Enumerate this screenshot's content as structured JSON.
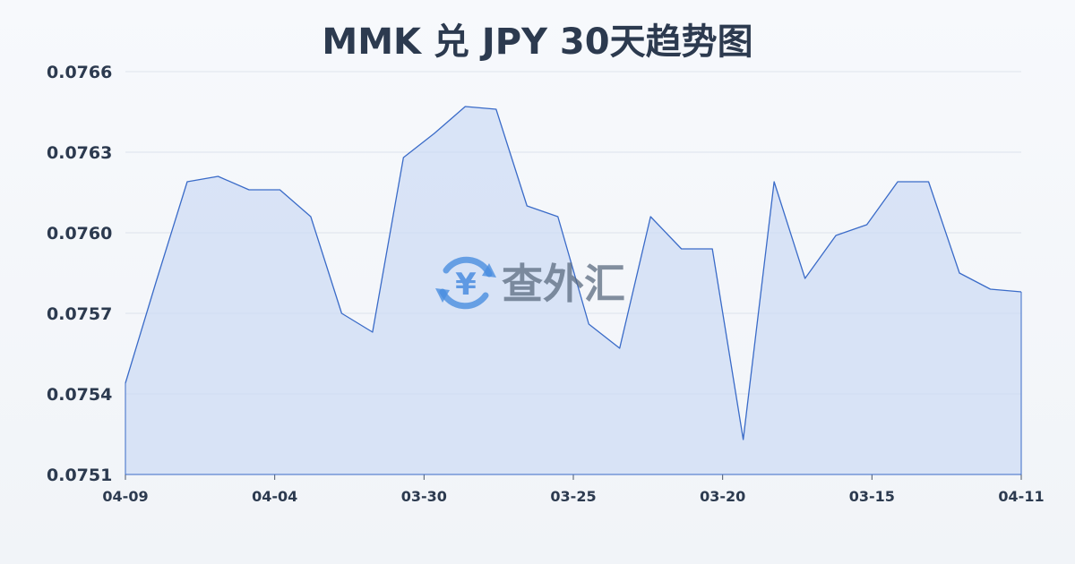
{
  "colors": {
    "line": "#3a6bc8",
    "fill": "#c9d8f4",
    "grid": "#dde3ec",
    "text": "#2c3a4f",
    "watermark_blue": "#4a8de0",
    "watermark_text": "#5b6b80"
  },
  "watermark": {
    "text": "查外汇",
    "icon": "yen-exchange-icon"
  },
  "chart_data": {
    "type": "area",
    "title": "MMK 兑 JPY 30天趋势图",
    "xlabel": "",
    "ylabel": "",
    "ylim": [
      0.0751,
      0.0766
    ],
    "yticks": [
      "0.0766",
      "0.0763",
      "0.0760",
      "0.0757",
      "0.0754",
      "0.0751"
    ],
    "xticks": [
      "04-09",
      "04-04",
      "03-30",
      "03-25",
      "03-20",
      "03-15",
      "04-11"
    ],
    "grid": true,
    "series": [
      {
        "values": [
          0.07544,
          0.07582,
          0.07619,
          0.07621,
          0.07616,
          0.07616,
          0.07606,
          0.0757,
          0.07563,
          0.07628,
          0.07637,
          0.07647,
          0.07646,
          0.0761,
          0.07606,
          0.07566,
          0.07557,
          0.07606,
          0.07594,
          0.07594,
          0.07523,
          0.07619,
          0.07583,
          0.07599,
          0.07603,
          0.07619,
          0.07619,
          0.07585,
          0.07579,
          0.07578
        ]
      }
    ]
  }
}
